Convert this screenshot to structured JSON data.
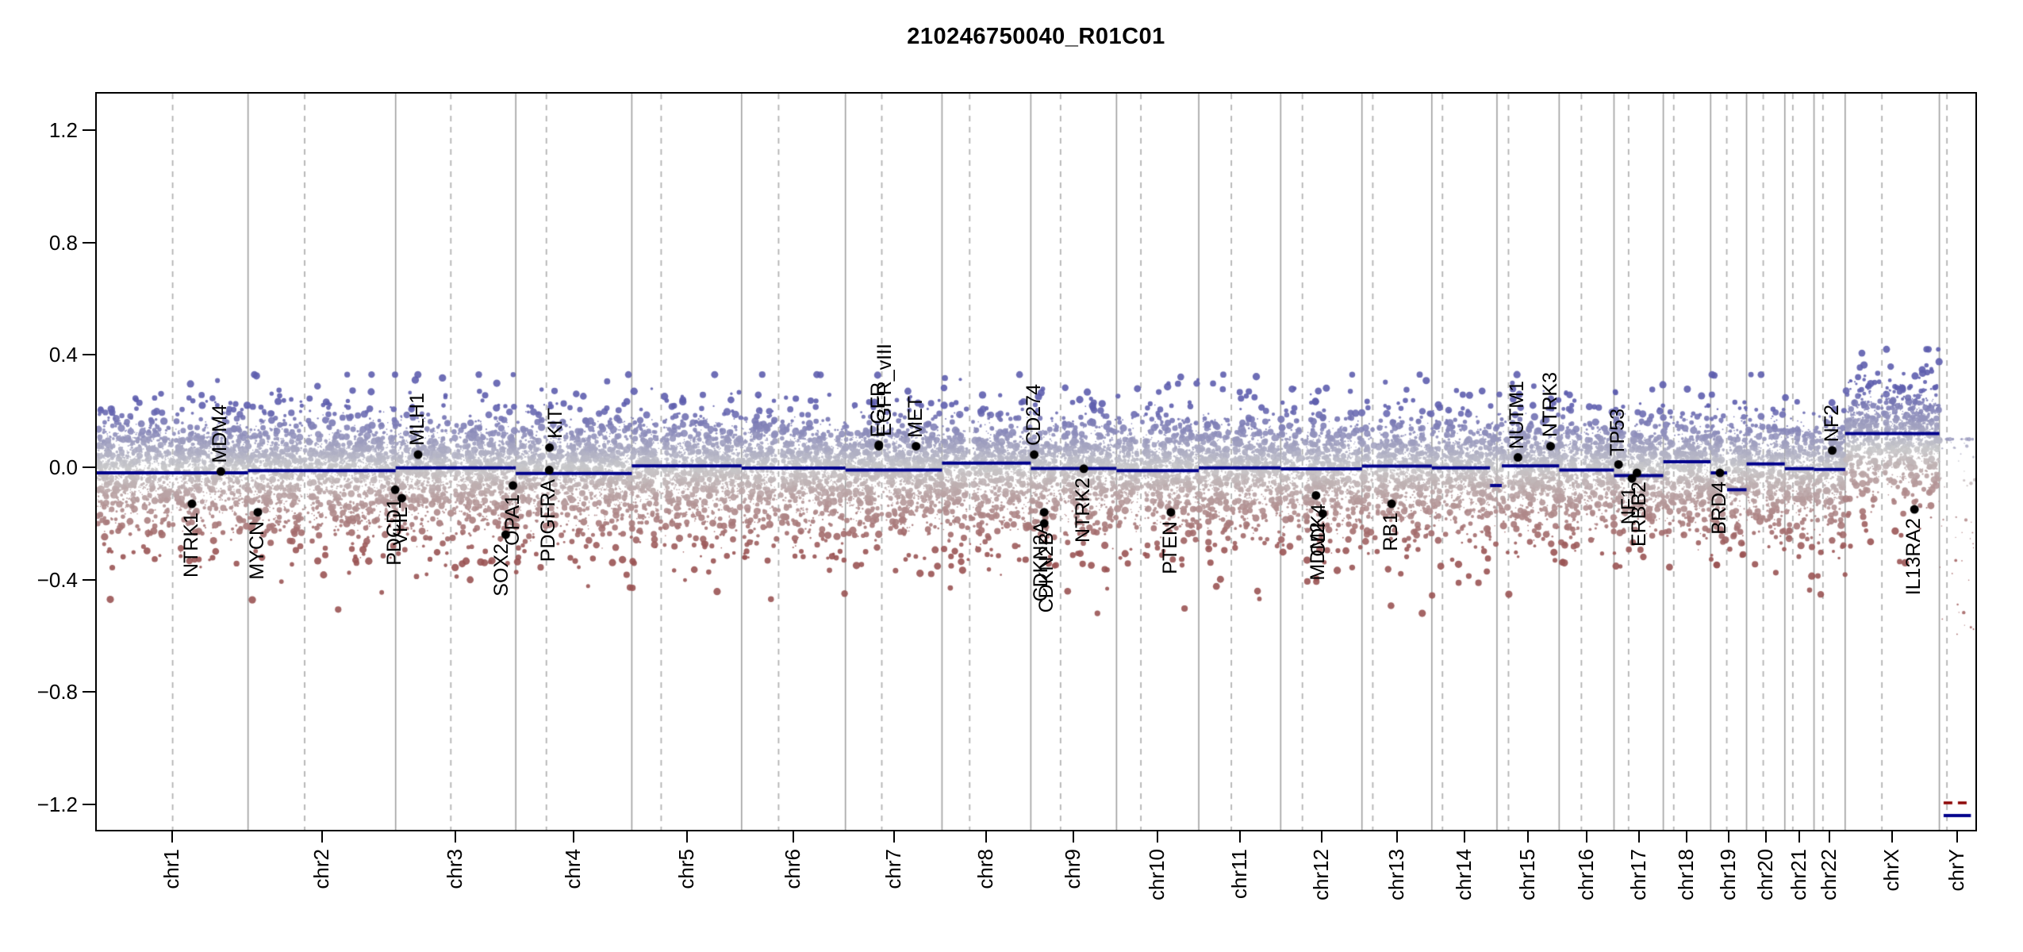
{
  "title": "210246750040_R01C01",
  "chart_data": {
    "type": "scatter",
    "title": "210246750040_R01C01",
    "xlabel": "",
    "ylabel": "",
    "ylim": [
      -1.29,
      1.33
    ],
    "grid": {
      "chromosome_boundaries": "solid",
      "centromeres": "dashed"
    },
    "y_ticks": [
      {
        "value": 1.2,
        "label": "1.2"
      },
      {
        "value": 0.8,
        "label": "0.8"
      },
      {
        "value": 0.4,
        "label": "0.4"
      },
      {
        "value": 0.0,
        "label": "0.0"
      },
      {
        "value": -0.4,
        "label": "−0.4"
      },
      {
        "value": -0.8,
        "label": "−0.8"
      },
      {
        "value": -1.2,
        "label": "−1.2"
      }
    ],
    "chromosomes": [
      {
        "name": "chr1",
        "length_mb": 249.25,
        "centromere_mb": 125.0
      },
      {
        "name": "chr2",
        "length_mb": 243.2,
        "centromere_mb": 93.3
      },
      {
        "name": "chr3",
        "length_mb": 198.02,
        "centromere_mb": 91.0
      },
      {
        "name": "chr4",
        "length_mb": 191.15,
        "centromere_mb": 50.4
      },
      {
        "name": "chr5",
        "length_mb": 180.92,
        "centromere_mb": 48.4
      },
      {
        "name": "chr6",
        "length_mb": 171.12,
        "centromere_mb": 61.0
      },
      {
        "name": "chr7",
        "length_mb": 159.14,
        "centromere_mb": 59.9
      },
      {
        "name": "chr8",
        "length_mb": 146.36,
        "centromere_mb": 45.6
      },
      {
        "name": "chr9",
        "length_mb": 141.21,
        "centromere_mb": 49.0
      },
      {
        "name": "chr10",
        "length_mb": 135.53,
        "centromere_mb": 40.2
      },
      {
        "name": "chr11",
        "length_mb": 135.01,
        "centromere_mb": 53.7
      },
      {
        "name": "chr12",
        "length_mb": 133.85,
        "centromere_mb": 35.8
      },
      {
        "name": "chr13",
        "length_mb": 115.17,
        "centromere_mb": 17.9
      },
      {
        "name": "chr14",
        "length_mb": 107.35,
        "centromere_mb": 17.6
      },
      {
        "name": "chr15",
        "length_mb": 102.53,
        "centromere_mb": 19.0
      },
      {
        "name": "chr16",
        "length_mb": 90.35,
        "centromere_mb": 36.6
      },
      {
        "name": "chr17",
        "length_mb": 81.2,
        "centromere_mb": 24.0
      },
      {
        "name": "chr18",
        "length_mb": 78.08,
        "centromere_mb": 17.2
      },
      {
        "name": "chr19",
        "length_mb": 59.13,
        "centromere_mb": 26.5
      },
      {
        "name": "chr20",
        "length_mb": 63.03,
        "centromere_mb": 27.5
      },
      {
        "name": "chr21",
        "length_mb": 48.13,
        "centromere_mb": 13.2
      },
      {
        "name": "chr22",
        "length_mb": 51.3,
        "centromere_mb": 14.7
      },
      {
        "name": "chrX",
        "length_mb": 155.27,
        "centromere_mb": 60.6
      },
      {
        "name": "chrY",
        "length_mb": 59.37,
        "centromere_mb": 12.5
      }
    ],
    "segments": [
      {
        "chr": "chr1",
        "start_mb": 0,
        "end_mb": 249.25,
        "value": -0.02,
        "style": "solid"
      },
      {
        "chr": "chr2",
        "start_mb": 0,
        "end_mb": 243.2,
        "value": -0.012,
        "style": "solid"
      },
      {
        "chr": "chr3",
        "start_mb": 0,
        "end_mb": 198.02,
        "value": -0.002,
        "style": "solid"
      },
      {
        "chr": "chr4",
        "start_mb": 0,
        "end_mb": 191.15,
        "value": -0.022,
        "style": "solid"
      },
      {
        "chr": "chr5",
        "start_mb": 0,
        "end_mb": 180.92,
        "value": 0.005,
        "style": "solid"
      },
      {
        "chr": "chr6",
        "start_mb": 0,
        "end_mb": 171.12,
        "value": -0.003,
        "style": "solid"
      },
      {
        "chr": "chr7",
        "start_mb": 0,
        "end_mb": 159.14,
        "value": -0.01,
        "style": "solid"
      },
      {
        "chr": "chr8",
        "start_mb": 0,
        "end_mb": 146.36,
        "value": 0.015,
        "style": "solid"
      },
      {
        "chr": "chr9",
        "start_mb": 0,
        "end_mb": 141.21,
        "value": -0.004,
        "style": "solid"
      },
      {
        "chr": "chr10",
        "start_mb": 0,
        "end_mb": 135.53,
        "value": -0.012,
        "style": "solid"
      },
      {
        "chr": "chr11",
        "start_mb": 0,
        "end_mb": 135.01,
        "value": -0.002,
        "style": "solid"
      },
      {
        "chr": "chr12",
        "start_mb": 0,
        "end_mb": 133.85,
        "value": -0.006,
        "style": "solid"
      },
      {
        "chr": "chr13",
        "start_mb": 0,
        "end_mb": 115.17,
        "value": 0.004,
        "style": "solid"
      },
      {
        "chr": "chr14",
        "start_mb": 0,
        "end_mb": 96,
        "value": -0.002,
        "style": "solid"
      },
      {
        "chr": "chr14",
        "start_mb": 96,
        "end_mb": 107.35,
        "value": -0.065,
        "style": "solid"
      },
      {
        "chr": "chr15",
        "start_mb": 0,
        "end_mb": 8,
        "value": -0.065,
        "style": "solid"
      },
      {
        "chr": "chr15",
        "start_mb": 8,
        "end_mb": 102.53,
        "value": 0.005,
        "style": "solid"
      },
      {
        "chr": "chr16",
        "start_mb": 0,
        "end_mb": 90.35,
        "value": -0.01,
        "style": "solid"
      },
      {
        "chr": "chr17",
        "start_mb": 0,
        "end_mb": 81.2,
        "value": -0.03,
        "style": "solid"
      },
      {
        "chr": "chr18",
        "start_mb": 0,
        "end_mb": 78.08,
        "value": 0.02,
        "style": "solid"
      },
      {
        "chr": "chr19",
        "start_mb": 0,
        "end_mb": 27,
        "value": -0.02,
        "style": "solid"
      },
      {
        "chr": "chr19",
        "start_mb": 27,
        "end_mb": 59.13,
        "value": -0.08,
        "style": "solid"
      },
      {
        "chr": "chr20",
        "start_mb": 0,
        "end_mb": 63.03,
        "value": 0.012,
        "style": "solid"
      },
      {
        "chr": "chr21",
        "start_mb": 0,
        "end_mb": 48.13,
        "value": -0.005,
        "style": "solid"
      },
      {
        "chr": "chr22",
        "start_mb": 0,
        "end_mb": 51.3,
        "value": -0.008,
        "style": "solid"
      },
      {
        "chr": "chrX",
        "start_mb": 0,
        "end_mb": 155.27,
        "value": 0.12,
        "style": "solid"
      },
      {
        "chr": "chrY",
        "start_mb": 7,
        "end_mb": 52,
        "value": -1.195,
        "style": "dashed"
      },
      {
        "chr": "chrY",
        "start_mb": 7,
        "end_mb": 52,
        "value": -1.24,
        "style": "solid"
      }
    ],
    "genes": [
      {
        "name": "NTRK1",
        "chr": "chr1",
        "pos_mb": 156.8,
        "value": -0.13,
        "label_side": "below",
        "label_dx": 0
      },
      {
        "name": "MDM4",
        "chr": "chr1",
        "pos_mb": 204.5,
        "value": -0.015,
        "label_side": "above",
        "label_dx": 0
      },
      {
        "name": "MYCN",
        "chr": "chr2",
        "pos_mb": 16.1,
        "value": -0.16,
        "label_side": "below",
        "label_dx": 0
      },
      {
        "name": "PDCD1",
        "chr": "chr2",
        "pos_mb": 242.5,
        "value": -0.08,
        "label_side": "below",
        "label_dx": 0
      },
      {
        "name": "VHL",
        "chr": "chr3",
        "pos_mb": 10.2,
        "value": -0.11,
        "label_side": "below",
        "label_dx": 0
      },
      {
        "name": "MLH1",
        "chr": "chr3",
        "pos_mb": 37.0,
        "value": 0.045,
        "label_side": "above",
        "label_dx": 0
      },
      {
        "name": "SOX2",
        "chr": "chr3",
        "pos_mb": 181.4,
        "value": -0.24,
        "label_side": "below",
        "label_dx": -4
      },
      {
        "name": "OPA1",
        "chr": "chr3",
        "pos_mb": 193.3,
        "value": -0.065,
        "label_side": "below",
        "label_dx": 0
      },
      {
        "name": "PDGFRA",
        "chr": "chr4",
        "pos_mb": 55.1,
        "value": -0.01,
        "label_side": "below",
        "label_dx": 0
      },
      {
        "name": "KIT",
        "chr": "chr4",
        "pos_mb": 55.5,
        "value": 0.07,
        "label_side": "above",
        "label_dx": 8
      },
      {
        "name": "EGFR",
        "chr": "chr7",
        "pos_mb": 55.0,
        "value": 0.075,
        "label_side": "above",
        "label_dx": 0
      },
      {
        "name": "EGFR_vIII",
        "chr": "chr7",
        "pos_mb": 55.1,
        "value": 0.08,
        "label_side": "above",
        "label_dx": 8
      },
      {
        "name": "MET",
        "chr": "chr7",
        "pos_mb": 116.3,
        "value": 0.075,
        "label_side": "above",
        "label_dx": 0
      },
      {
        "name": "CD274",
        "chr": "chr9",
        "pos_mb": 5.5,
        "value": 0.045,
        "label_side": "above",
        "label_dx": 0
      },
      {
        "name": "CDKN2A",
        "chr": "chr9",
        "pos_mb": 21.97,
        "value": -0.16,
        "label_side": "below",
        "label_dx": -3
      },
      {
        "name": "CDKN2B",
        "chr": "chr9",
        "pos_mb": 22.01,
        "value": -0.2,
        "label_side": "below",
        "label_dx": 4
      },
      {
        "name": "NTRK2",
        "chr": "chr9",
        "pos_mb": 87.3,
        "value": -0.005,
        "label_side": "below",
        "label_dx": 0
      },
      {
        "name": "PTEN",
        "chr": "chr10",
        "pos_mb": 89.6,
        "value": -0.16,
        "label_side": "below",
        "label_dx": 0
      },
      {
        "name": "CDK4",
        "chr": "chr12",
        "pos_mb": 58.1,
        "value": -0.1,
        "label_side": "below",
        "label_dx": 4
      },
      {
        "name": "MDM2",
        "chr": "chr12",
        "pos_mb": 69.2,
        "value": -0.165,
        "label_side": "below",
        "label_dx": -5
      },
      {
        "name": "RB1",
        "chr": "chr13",
        "pos_mb": 48.9,
        "value": -0.13,
        "label_side": "below",
        "label_dx": 0
      },
      {
        "name": "NUTM1",
        "chr": "chr15",
        "pos_mb": 34.6,
        "value": 0.035,
        "label_side": "above",
        "label_dx": 0
      },
      {
        "name": "NTRK3",
        "chr": "chr15",
        "pos_mb": 88.4,
        "value": 0.075,
        "label_side": "above",
        "label_dx": 0
      },
      {
        "name": "TP53",
        "chr": "chr17",
        "pos_mb": 7.5,
        "value": 0.01,
        "label_side": "above",
        "label_dx": 0
      },
      {
        "name": "NF1",
        "chr": "chr17",
        "pos_mb": 29.5,
        "value": -0.04,
        "label_side": "below",
        "label_dx": -3
      },
      {
        "name": "ERBB2",
        "chr": "chr17",
        "pos_mb": 37.8,
        "value": -0.02,
        "label_side": "below",
        "label_dx": 4
      },
      {
        "name": "BRD4",
        "chr": "chr19",
        "pos_mb": 15.3,
        "value": -0.02,
        "label_side": "below",
        "label_dx": 0
      },
      {
        "name": "NF2",
        "chr": "chr22",
        "pos_mb": 30.0,
        "value": 0.06,
        "label_side": "above",
        "label_dx": 0
      },
      {
        "name": "IL13RA2",
        "chr": "chrX",
        "pos_mb": 114.2,
        "value": -0.15,
        "label_side": "below",
        "label_dx": 0
      }
    ],
    "point_cloud": {
      "points_per_mb": 8,
      "base_sigma": 0.05,
      "sigma_per_radius": 0.019,
      "negative_skew": 1.32,
      "chrX_shift": 0.12,
      "chrY_points": 60,
      "seed": 42
    },
    "colors": {
      "segment_line": "#00008B",
      "segment_dashed": "#8B0000",
      "gain_point": "#5e5eae",
      "neutral_point": "#c8c8ca",
      "loss_point": "#9a5454",
      "grid_boundary": "#9f9f9f",
      "grid_centromere": "#b2b2b2",
      "gene_marker": "#000000",
      "axis": "#000000",
      "background": "#ffffff"
    }
  }
}
